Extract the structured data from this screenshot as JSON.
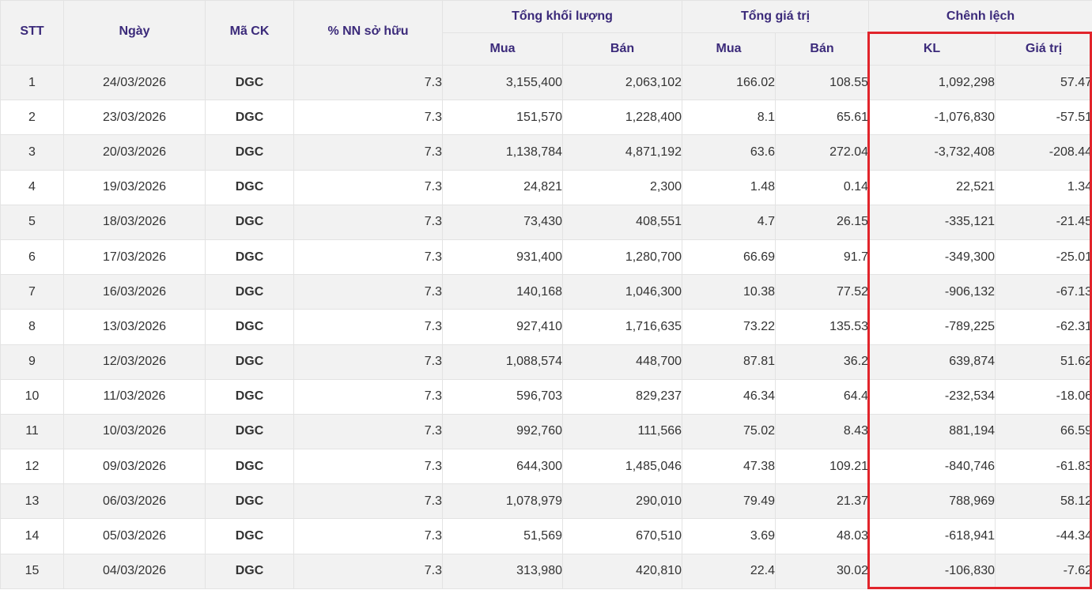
{
  "table": {
    "headers": {
      "stt": "STT",
      "date": "Ngày",
      "code": "Mã CK",
      "ownership": "% NN sở hữu",
      "total_volume": "Tổng khối lượng",
      "total_value": "Tổng giá trị",
      "difference": "Chênh lệch",
      "buy": "Mua",
      "sell": "Bán",
      "diff_volume": "KL",
      "diff_value": "Giá trị"
    },
    "rows": [
      {
        "stt": "1",
        "date": "24/03/2026",
        "code": "DGC",
        "own": "7.3",
        "vol_buy": "3,155,400",
        "vol_sell": "2,063,102",
        "val_buy": "166.02",
        "val_sell": "108.55",
        "diff_kl": "1,092,298",
        "diff_val": "57.47"
      },
      {
        "stt": "2",
        "date": "23/03/2026",
        "code": "DGC",
        "own": "7.3",
        "vol_buy": "151,570",
        "vol_sell": "1,228,400",
        "val_buy": "8.1",
        "val_sell": "65.61",
        "diff_kl": "-1,076,830",
        "diff_val": "-57.51"
      },
      {
        "stt": "3",
        "date": "20/03/2026",
        "code": "DGC",
        "own": "7.3",
        "vol_buy": "1,138,784",
        "vol_sell": "4,871,192",
        "val_buy": "63.6",
        "val_sell": "272.04",
        "diff_kl": "-3,732,408",
        "diff_val": "-208.44"
      },
      {
        "stt": "4",
        "date": "19/03/2026",
        "code": "DGC",
        "own": "7.3",
        "vol_buy": "24,821",
        "vol_sell": "2,300",
        "val_buy": "1.48",
        "val_sell": "0.14",
        "diff_kl": "22,521",
        "diff_val": "1.34"
      },
      {
        "stt": "5",
        "date": "18/03/2026",
        "code": "DGC",
        "own": "7.3",
        "vol_buy": "73,430",
        "vol_sell": "408,551",
        "val_buy": "4.7",
        "val_sell": "26.15",
        "diff_kl": "-335,121",
        "diff_val": "-21.45"
      },
      {
        "stt": "6",
        "date": "17/03/2026",
        "code": "DGC",
        "own": "7.3",
        "vol_buy": "931,400",
        "vol_sell": "1,280,700",
        "val_buy": "66.69",
        "val_sell": "91.7",
        "diff_kl": "-349,300",
        "diff_val": "-25.01"
      },
      {
        "stt": "7",
        "date": "16/03/2026",
        "code": "DGC",
        "own": "7.3",
        "vol_buy": "140,168",
        "vol_sell": "1,046,300",
        "val_buy": "10.38",
        "val_sell": "77.52",
        "diff_kl": "-906,132",
        "diff_val": "-67.13"
      },
      {
        "stt": "8",
        "date": "13/03/2026",
        "code": "DGC",
        "own": "7.3",
        "vol_buy": "927,410",
        "vol_sell": "1,716,635",
        "val_buy": "73.22",
        "val_sell": "135.53",
        "diff_kl": "-789,225",
        "diff_val": "-62.31"
      },
      {
        "stt": "9",
        "date": "12/03/2026",
        "code": "DGC",
        "own": "7.3",
        "vol_buy": "1,088,574",
        "vol_sell": "448,700",
        "val_buy": "87.81",
        "val_sell": "36.2",
        "diff_kl": "639,874",
        "diff_val": "51.62"
      },
      {
        "stt": "10",
        "date": "11/03/2026",
        "code": "DGC",
        "own": "7.3",
        "vol_buy": "596,703",
        "vol_sell": "829,237",
        "val_buy": "46.34",
        "val_sell": "64.4",
        "diff_kl": "-232,534",
        "diff_val": "-18.06"
      },
      {
        "stt": "11",
        "date": "10/03/2026",
        "code": "DGC",
        "own": "7.3",
        "vol_buy": "992,760",
        "vol_sell": "111,566",
        "val_buy": "75.02",
        "val_sell": "8.43",
        "diff_kl": "881,194",
        "diff_val": "66.59"
      },
      {
        "stt": "12",
        "date": "09/03/2026",
        "code": "DGC",
        "own": "7.3",
        "vol_buy": "644,300",
        "vol_sell": "1,485,046",
        "val_buy": "47.38",
        "val_sell": "109.21",
        "diff_kl": "-840,746",
        "diff_val": "-61.83"
      },
      {
        "stt": "13",
        "date": "06/03/2026",
        "code": "DGC",
        "own": "7.3",
        "vol_buy": "1,078,979",
        "vol_sell": "290,010",
        "val_buy": "79.49",
        "val_sell": "21.37",
        "diff_kl": "788,969",
        "diff_val": "58.12"
      },
      {
        "stt": "14",
        "date": "05/03/2026",
        "code": "DGC",
        "own": "7.3",
        "vol_buy": "51,569",
        "vol_sell": "670,510",
        "val_buy": "3.69",
        "val_sell": "48.03",
        "diff_kl": "-618,941",
        "diff_val": "-44.34"
      },
      {
        "stt": "15",
        "date": "04/03/2026",
        "code": "DGC",
        "own": "7.3",
        "vol_buy": "313,980",
        "vol_sell": "420,810",
        "val_buy": "22.4",
        "val_sell": "30.02",
        "diff_kl": "-106,830",
        "diff_val": "-7.62"
      }
    ]
  },
  "colors": {
    "header_text": "#3b2a7a",
    "header_bg": "#f2f2f2",
    "highlight_border": "#e1242b",
    "stock_code": "#3b2a7a"
  }
}
